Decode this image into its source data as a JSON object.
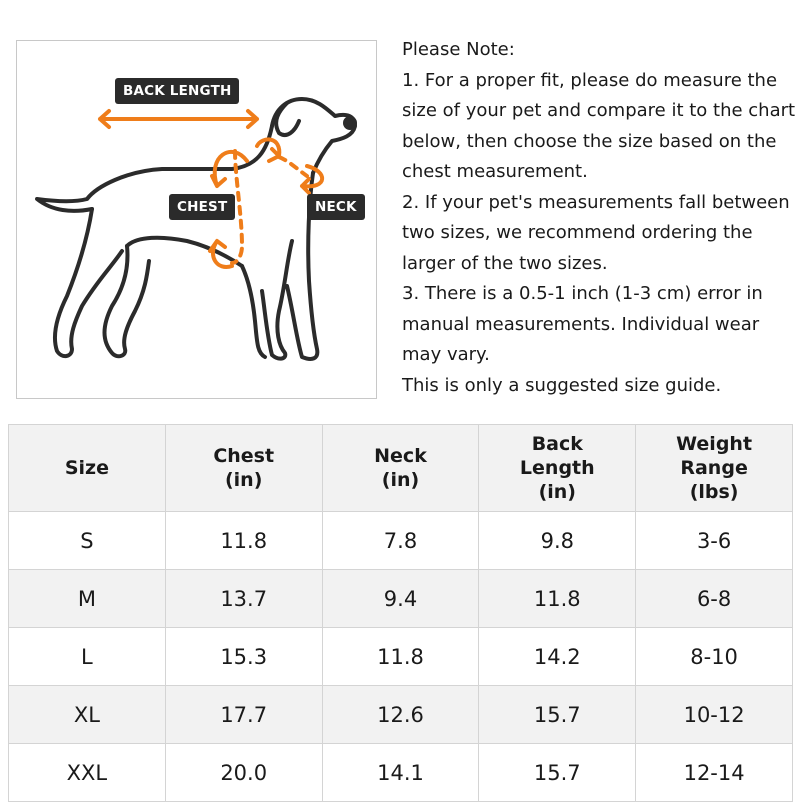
{
  "diagram": {
    "labels": {
      "back_length": "BACK LENGTH",
      "chest": "CHEST",
      "neck": "NECK"
    },
    "colors": {
      "arrow": "#ef7d1a",
      "outline": "#2b2b2b",
      "label_bg": "#2b2b2b"
    }
  },
  "notes": {
    "lines": [
      "Please Note:",
      "1. For a proper fit, please do measure the",
      "size of your pet and compare it to the chart",
      "below, then choose the size based on the",
      "chest measurement.",
      "2. If your pet's measurements fall between",
      "two sizes, we recommend ordering the",
      "larger of the two sizes.",
      "3. There is a 0.5-1 inch (1-3 cm) error in",
      "manual measurements. Individual wear",
      "may vary.",
      "This is only a suggested size guide."
    ]
  },
  "table": {
    "headers": [
      [
        "Size"
      ],
      [
        "Chest",
        "(in)"
      ],
      [
        "Neck",
        "(in)"
      ],
      [
        "Back",
        "Length",
        "(in)"
      ],
      [
        "Weight",
        "Range",
        "(lbs)"
      ]
    ],
    "rows": [
      [
        "S",
        "11.8",
        "7.8",
        "9.8",
        "3-6"
      ],
      [
        "M",
        "13.7",
        "9.4",
        "11.8",
        "6-8"
      ],
      [
        "L",
        "15.3",
        "11.8",
        "14.2",
        "8-10"
      ],
      [
        "XL",
        "17.7",
        "12.6",
        "15.7",
        "10-12"
      ],
      [
        "XXL",
        "20.0",
        "14.1",
        "15.7",
        "12-14"
      ]
    ]
  }
}
